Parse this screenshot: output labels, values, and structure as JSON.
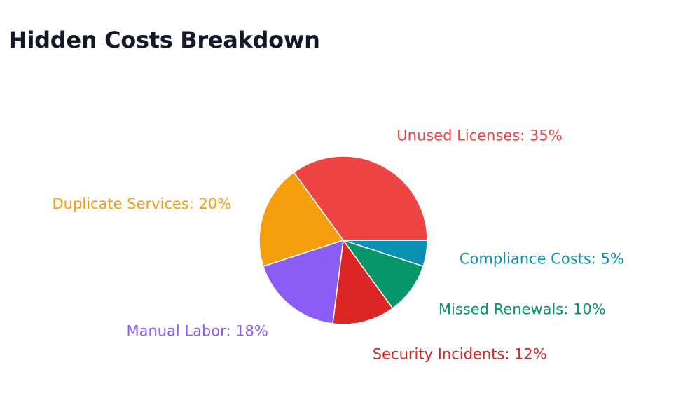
{
  "page": {
    "title": "Hidden Costs Breakdown"
  },
  "chart_data": {
    "type": "pie",
    "title": "Hidden Costs Breakdown",
    "label_format": "{label}: {value}%",
    "start_angle_deg": 0,
    "direction": "clockwise",
    "slices": [
      {
        "label": "Compliance Costs",
        "value": 5,
        "color": "#0891b2"
      },
      {
        "label": "Missed Renewals",
        "value": 10,
        "color": "#059669"
      },
      {
        "label": "Security Incidents",
        "value": 12,
        "color": "#dc2626"
      },
      {
        "label": "Manual Labor",
        "value": 18,
        "color": "#8b5cf6"
      },
      {
        "label": "Duplicate Services",
        "value": 20,
        "color": "#f59e0b"
      },
      {
        "label": "Unused Licenses",
        "value": 35,
        "color": "#ef4444"
      }
    ],
    "legend": "none"
  }
}
